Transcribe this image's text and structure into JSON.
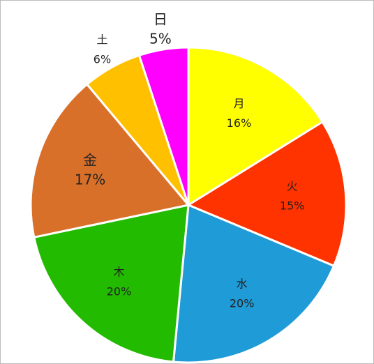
{
  "chart_data": {
    "type": "pie",
    "categories": [
      "月",
      "火",
      "水",
      "木",
      "金",
      "土",
      "日"
    ],
    "values": [
      16,
      15,
      20,
      20,
      17,
      6,
      5
    ],
    "value_labels": [
      "16%",
      "15%",
      "20%",
      "20%",
      "17%",
      "6%",
      "5%"
    ],
    "colors": [
      "#ffff00",
      "#ff3300",
      "#1f9bd7",
      "#22bb00",
      "#d9702a",
      "#ffc000",
      "#ff00ff"
    ]
  }
}
